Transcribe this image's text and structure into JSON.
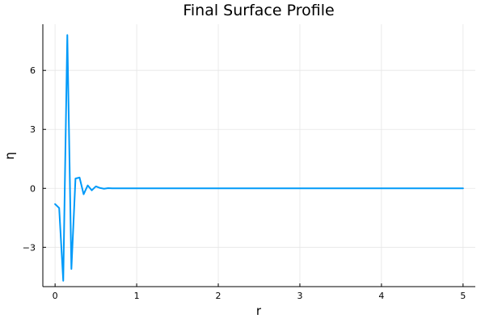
{
  "chart_data": {
    "type": "line",
    "title": "Final Surface Profile",
    "xlabel": "r",
    "ylabel": "η",
    "xlim": [
      -0.15,
      5.15
    ],
    "ylim": [
      -5.0,
      8.35
    ],
    "xticks": [
      0,
      1,
      2,
      3,
      4,
      5
    ],
    "xtick_labels": [
      "0",
      "1",
      "2",
      "3",
      "4",
      "5"
    ],
    "yticks": [
      -3,
      0,
      3,
      6
    ],
    "ytick_labels": [
      "−3",
      "0",
      "3",
      "6"
    ],
    "grid": true,
    "legend": "none",
    "series": [
      {
        "color": "#009af9",
        "x": [
          0.0,
          0.05,
          0.1,
          0.15,
          0.2,
          0.25,
          0.3,
          0.35,
          0.4,
          0.45,
          0.5,
          0.55,
          0.6,
          0.65,
          0.7,
          0.75,
          0.8,
          1.0,
          1.5,
          2.0,
          2.5,
          3.0,
          3.5,
          4.0,
          4.5,
          5.0
        ],
        "y": [
          -0.8,
          -1.0,
          -4.7,
          7.8,
          -4.1,
          0.5,
          0.55,
          -0.3,
          0.15,
          -0.1,
          0.1,
          0.02,
          -0.02,
          0.01,
          0.0,
          0.0,
          0.0,
          0.0,
          0.0,
          0.0,
          0.0,
          0.0,
          0.0,
          0.0,
          0.0,
          0.0
        ]
      }
    ]
  }
}
